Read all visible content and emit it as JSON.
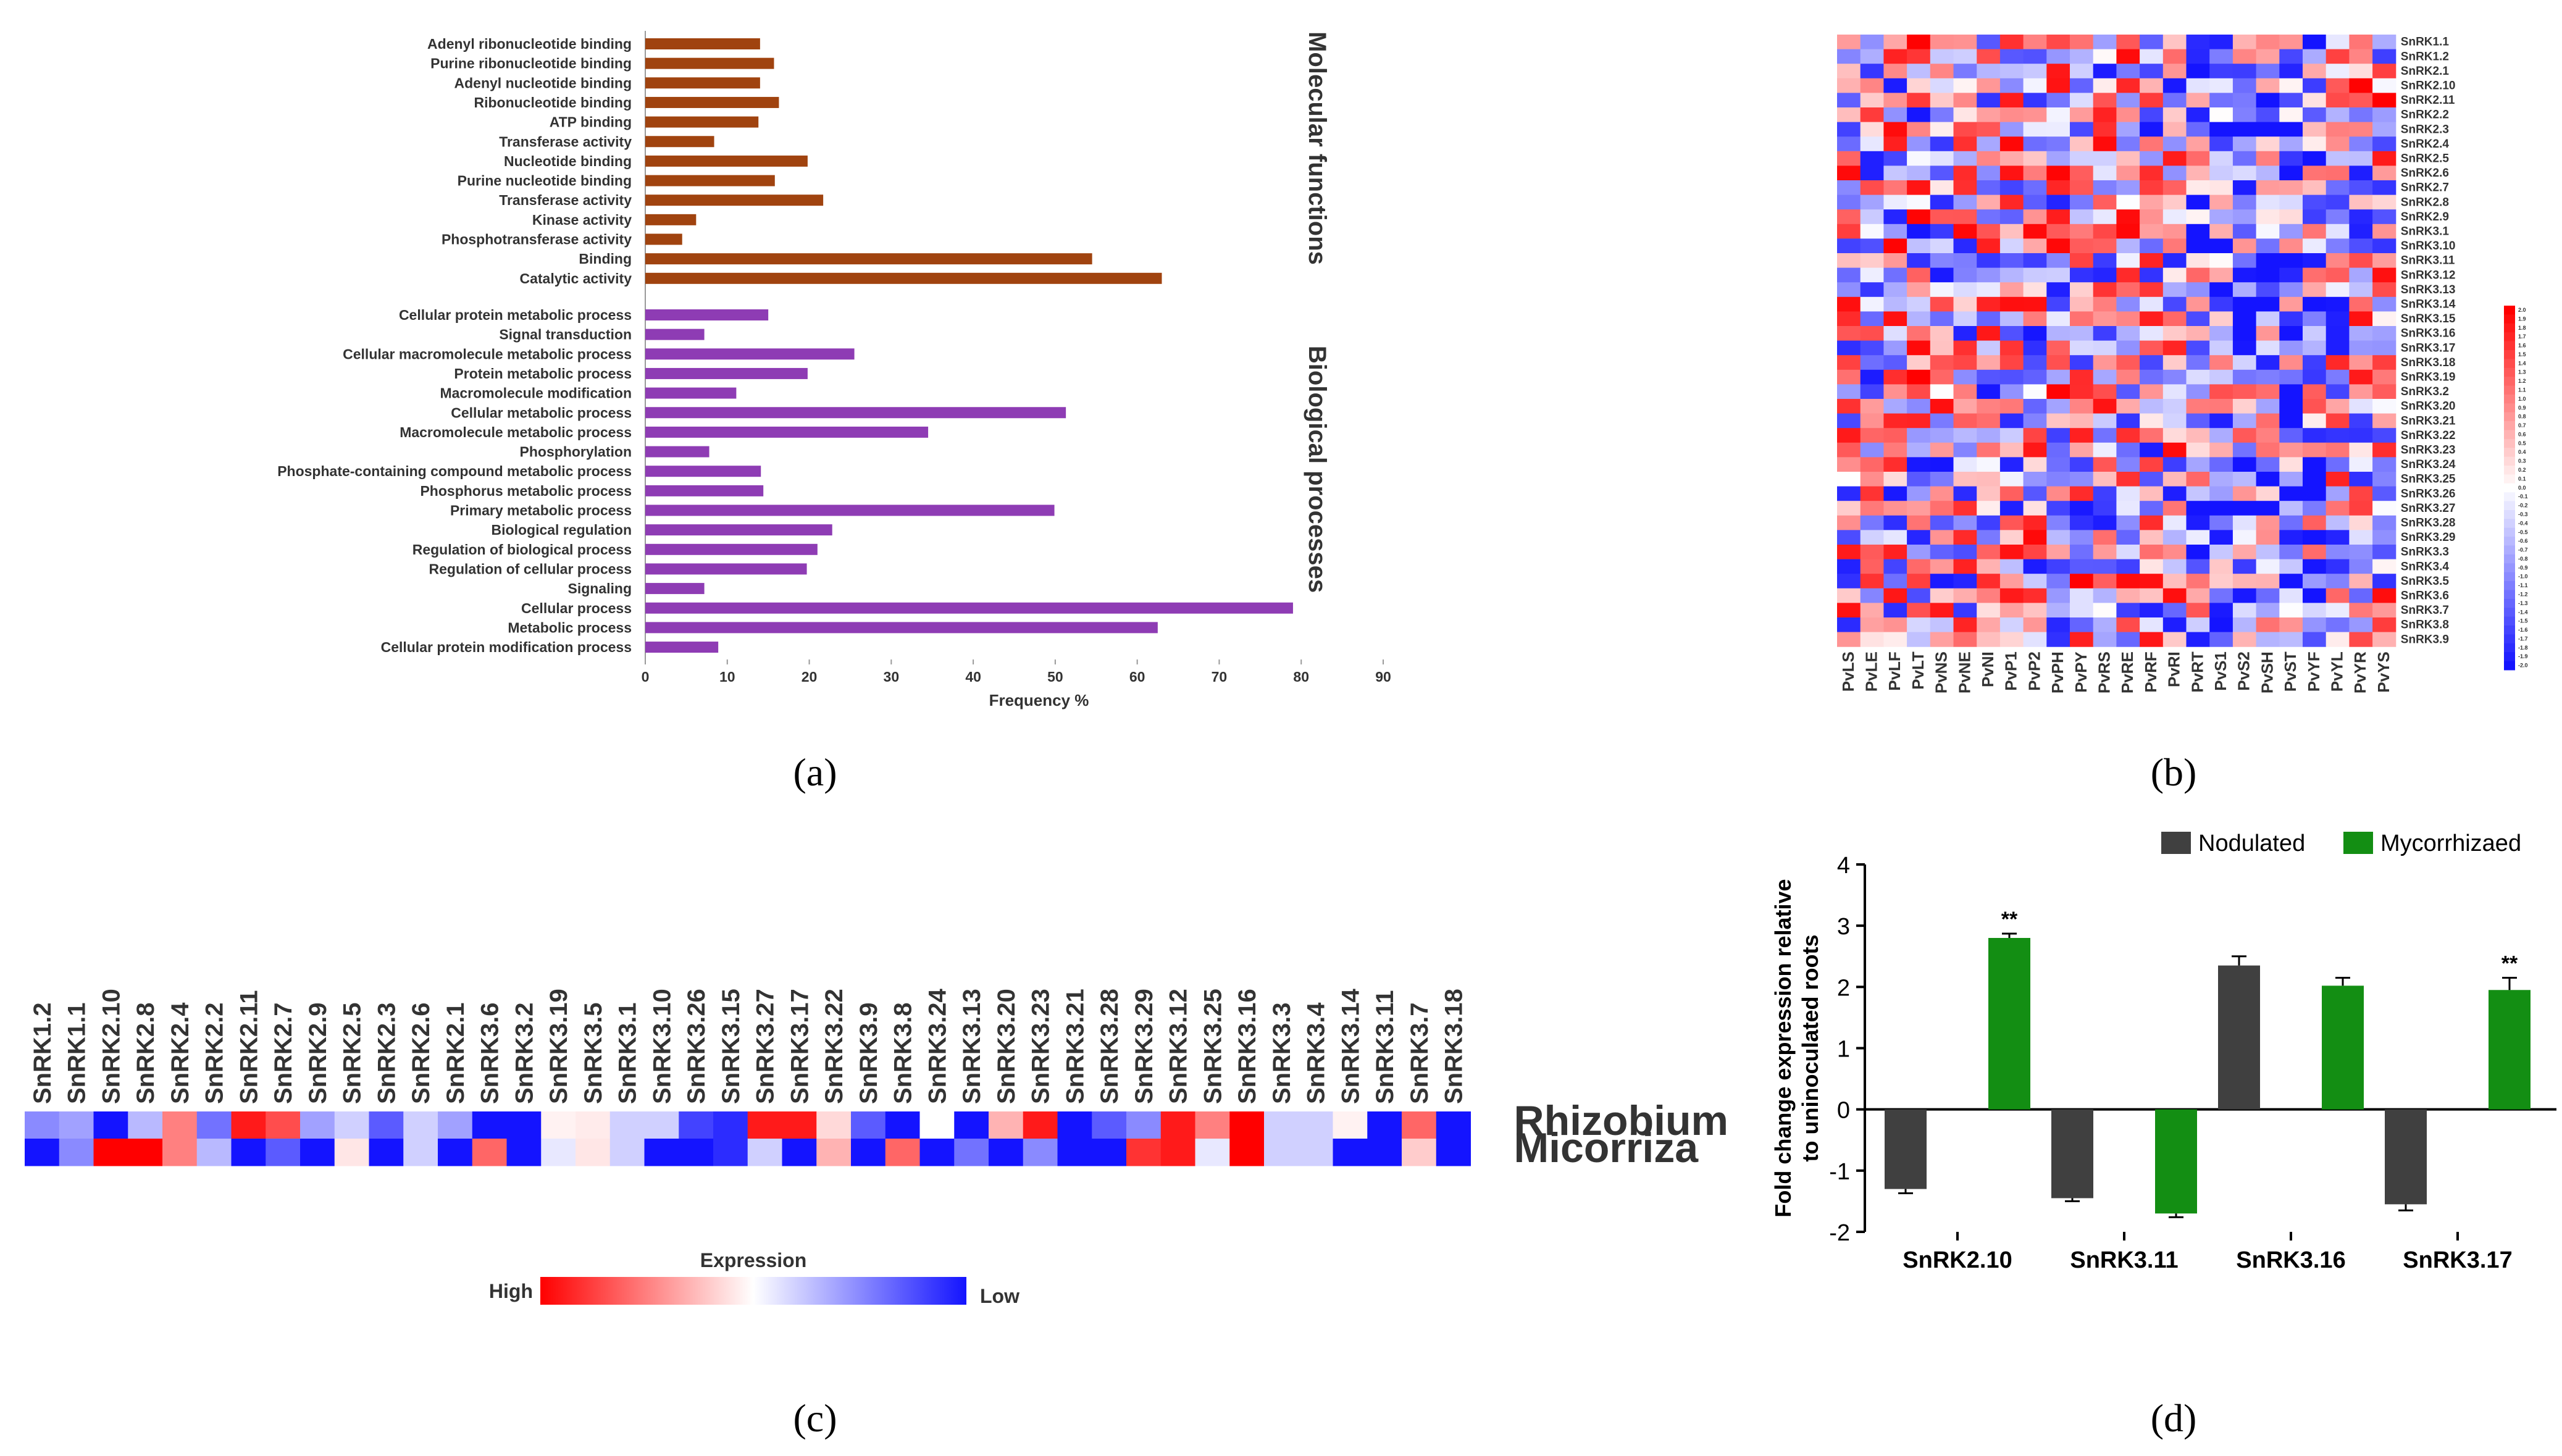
{
  "panel_labels": {
    "a": "(a)",
    "b": "(b)",
    "c": "(c)",
    "d": "(d)"
  },
  "chart_data": [
    {
      "panel": "a",
      "type": "bar",
      "orientation": "horizontal",
      "xlabel": "Frequency %",
      "xlim": [
        0,
        90
      ],
      "xticks": [
        0,
        10,
        20,
        30,
        40,
        50,
        60,
        70,
        80,
        90
      ],
      "groups": [
        {
          "name": "Molecular functions",
          "color": "#A0430F",
          "categories": [
            "Adenyl ribonucleotide binding",
            "Purine ribonucleotide binding",
            "Adenyl nucleotide binding",
            "Ribonucleotide binding",
            "ATP binding",
            "Transferase activity",
            "Nucleotide binding",
            "Purine nucleotide binding",
            "Transferase activity",
            "Kinase activity",
            "Phosphotransferase activity",
            "Binding",
            "Catalytic activity"
          ],
          "values": [
            14,
            15.7,
            14,
            16.3,
            13.8,
            8.4,
            19.8,
            15.8,
            21.7,
            6.2,
            4.5,
            54.5,
            63
          ]
        },
        {
          "name": "Biological processes",
          "color": "#8E3CB4",
          "categories": [
            "Cellular protein metabolic process",
            "Signal transduction",
            "Cellular macromolecule metabolic process",
            "Protein metabolic process",
            "Macromolecule modification",
            "Cellular metabolic process",
            "Macromolecule metabolic process",
            "Phosphorylation",
            "Phosphate-containing compound metabolic process",
            "Phosphorus metabolic process",
            "Primary metabolic process",
            "Biological regulation",
            "Regulation of biological process",
            "Regulation of cellular process",
            "Signaling",
            "Cellular process",
            "Metabolic process",
            "Cellular protein modification process"
          ],
          "values": [
            15,
            7.2,
            25.5,
            19.8,
            11.1,
            51.3,
            34.5,
            7.8,
            14.1,
            14.4,
            49.9,
            22.8,
            21,
            19.7,
            7.2,
            79,
            62.5,
            8.9
          ]
        }
      ]
    },
    {
      "panel": "b",
      "type": "heatmap",
      "columns": [
        "PvLS",
        "PvLE",
        "PvLF",
        "PvLT",
        "PvNS",
        "PvNE",
        "PvNI",
        "PvP1",
        "PvP2",
        "PvPH",
        "PvPY",
        "PvRS",
        "PvRE",
        "PvRF",
        "PvRI",
        "PvRT",
        "PvS1",
        "PvS2",
        "PvSH",
        "PvST",
        "PvYF",
        "PvYL",
        "PvYR",
        "PvYS"
      ],
      "rows": [
        "SnRK1.1",
        "SnRK1.2",
        "SnRK2.1",
        "SnRK2.10",
        "SnRK2.11",
        "SnRK2.2",
        "SnRK2.3",
        "SnRK2.4",
        "SnRK2.5",
        "SnRK2.6",
        "SnRK2.7",
        "SnRK2.8",
        "SnRK2.9",
        "SnRK3.1",
        "SnRK3.10",
        "SnRK3.11",
        "SnRK3.12",
        "SnRK3.13",
        "SnRK3.14",
        "SnRK3.15",
        "SnRK3.16",
        "SnRK3.17",
        "SnRK3.18",
        "SnRK3.19",
        "SnRK3.2",
        "SnRK3.20",
        "SnRK3.21",
        "SnRK3.22",
        "SnRK3.23",
        "SnRK3.24",
        "SnRK3.25",
        "SnRK3.26",
        "SnRK3.27",
        "SnRK3.28",
        "SnRK3.29",
        "SnRK3.3",
        "SnRK3.4",
        "SnRK3.5",
        "SnRK3.6",
        "SnRK3.7",
        "SnRK3.8",
        "SnRK3.9"
      ],
      "scale_range": [
        -2,
        2
      ],
      "scale_ticks": [
        "2.0",
        "1.9",
        "1.8",
        "1.7",
        "1.6",
        "1.5",
        "1.4",
        "1.3",
        "1.2",
        "1.1",
        "1.0",
        "0.9",
        "0.8",
        "0.7",
        "0.6",
        "0.5",
        "0.4",
        "0.3",
        "0.2",
        "0.1",
        "0.0",
        "-0.1",
        "-0.2",
        "-0.3",
        "-0.4",
        "-0.5",
        "-0.6",
        "-0.7",
        "-0.8",
        "-0.9",
        "-1.0",
        "-1.1",
        "-1.2",
        "-1.3",
        "-1.4",
        "-1.5",
        "-1.6",
        "-1.7",
        "-1.8",
        "-1.9",
        "-2.0"
      ],
      "values_note": "cell values estimated, pattern seeded",
      "seed": 12345
    },
    {
      "panel": "c",
      "type": "heatmap",
      "columns": [
        "SnRK1.2",
        "SnRK1.1",
        "SnRK2.10",
        "SnRK2.8",
        "SnRK2.4",
        "SnRK2.2",
        "SnRK2.11",
        "SnRK2.7",
        "SnRK2.9",
        "SnRK2.5",
        "SnRK2.3",
        "SnRK2.6",
        "SnRK2.1",
        "SnRK3.6",
        "SnRK3.2",
        "SnRK3.19",
        "SnRK3.5",
        "SnRK3.1",
        "SnRK3.10",
        "SnRK3.26",
        "SnRK3.15",
        "SnRK3.27",
        "SnRK3.17",
        "SnRK3.22",
        "SnRK3.9",
        "SnRK3.8",
        "SnRK3.24",
        "SnRK3.13",
        "SnRK3.20",
        "SnRK3.23",
        "SnRK3.21",
        "SnRK3.28",
        "SnRK3.29",
        "SnRK3.12",
        "SnRK3.25",
        "SnRK3.16",
        "SnRK3.3",
        "SnRK3.4",
        "SnRK3.14",
        "SnRK3.11",
        "SnRK3.7",
        "SnRK3.18"
      ],
      "rows": [
        "Rhizobium",
        "Micorriza"
      ],
      "values": [
        [
          -0.5,
          -0.4,
          -1.0,
          -0.3,
          0.5,
          -0.6,
          0.9,
          0.7,
          -0.4,
          -0.2,
          -0.7,
          -0.2,
          -0.4,
          -1.0,
          -1.0,
          0.05,
          0.08,
          -0.2,
          -0.2,
          -0.8,
          -0.9,
          0.9,
          0.9,
          0.15,
          -0.7,
          -1.0,
          0.0,
          -1.0,
          0.3,
          0.9,
          -1.0,
          -0.7,
          -0.5,
          0.9,
          0.5,
          1.0,
          -0.2,
          -0.2,
          0.05,
          -1.0,
          0.6,
          -1.0
        ],
        [
          -1.0,
          -0.5,
          1.0,
          1.0,
          0.5,
          -0.3,
          -1.0,
          -0.7,
          -1.0,
          0.1,
          -1.0,
          -0.2,
          -1.0,
          0.6,
          -1.0,
          -0.1,
          0.1,
          -0.2,
          -1.0,
          -1.0,
          -0.9,
          -0.2,
          -1.0,
          0.3,
          -1.0,
          0.6,
          -1.0,
          -0.6,
          -1.0,
          -0.5,
          -1.0,
          -1.0,
          0.8,
          0.9,
          -0.1,
          1.0,
          -0.2,
          -0.2,
          -1.0,
          -1.0,
          0.2,
          -1.0
        ]
      ],
      "legend_title": "Expression",
      "legend_high": "High",
      "legend_low": "Low"
    },
    {
      "panel": "d",
      "type": "bar",
      "ylabel_line1": "Fold change expression relative",
      "ylabel_line2": "to uninoculated roots",
      "ylim": [
        -2,
        4
      ],
      "yticks": [
        -2,
        -1,
        0,
        1,
        2,
        3,
        4
      ],
      "categories": [
        "SnRK2.10",
        "SnRK3.11",
        "SnRK3.16",
        "SnRK3.17"
      ],
      "series": [
        {
          "name": "Nodulated",
          "color": "#404040",
          "values": [
            -1.3,
            -1.45,
            2.35,
            -1.55
          ],
          "errors": [
            0.07,
            0.05,
            0.15,
            0.1
          ]
        },
        {
          "name": "Mycorrhizaed",
          "color": "#138E13",
          "values": [
            2.8,
            -1.7,
            2.02,
            1.95
          ],
          "errors": [
            0.07,
            0.06,
            0.13,
            0.2
          ]
        }
      ],
      "annotations": [
        {
          "category": "SnRK2.10",
          "series": "Mycorrhizaed",
          "text": "**"
        },
        {
          "category": "SnRK3.17",
          "series": "Mycorrhizaed",
          "text": "**"
        }
      ]
    }
  ]
}
